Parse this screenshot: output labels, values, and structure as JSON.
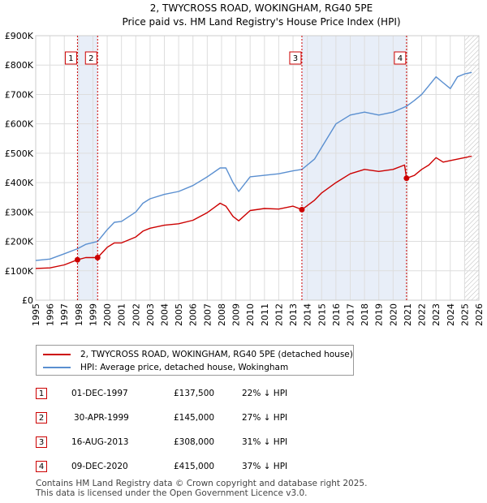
{
  "chart_data": {
    "type": "line",
    "title": "2, TWYCROSS ROAD, WOKINGHAM, RG40 5PE",
    "subtitle": "Price paid vs. HM Land Registry's House Price Index (HPI)",
    "xlabel": "",
    "ylabel": "",
    "xlim": [
      1995,
      2026
    ],
    "ylim": [
      0,
      900000
    ],
    "y_ticks": [
      {
        "value": 0,
        "label": "£0"
      },
      {
        "value": 100000,
        "label": "£100K"
      },
      {
        "value": 200000,
        "label": "£200K"
      },
      {
        "value": 300000,
        "label": "£300K"
      },
      {
        "value": 400000,
        "label": "£400K"
      },
      {
        "value": 500000,
        "label": "£500K"
      },
      {
        "value": 600000,
        "label": "£600K"
      },
      {
        "value": 700000,
        "label": "£700K"
      },
      {
        "value": 800000,
        "label": "£800K"
      },
      {
        "value": 900000,
        "label": "£900K"
      }
    ],
    "x_ticks": [
      "1995",
      "1996",
      "1997",
      "1998",
      "1999",
      "2000",
      "2001",
      "2002",
      "2003",
      "2004",
      "2005",
      "2006",
      "2007",
      "2008",
      "2009",
      "2010",
      "2011",
      "2012",
      "2013",
      "2014",
      "2015",
      "2016",
      "2017",
      "2018",
      "2019",
      "2020",
      "2021",
      "2022",
      "2023",
      "2024",
      "2025",
      "2026"
    ],
    "grid": true,
    "shaded_spans": [
      [
        1997.92,
        1999.33
      ],
      [
        2013.62,
        2020.94
      ]
    ],
    "hatched_from": 2025.0,
    "series": [
      {
        "name": "2, TWYCROSS ROAD, WOKINGHAM, RG40 5PE (detached house)",
        "color": "#cc0000",
        "points": [
          [
            1995.0,
            108000
          ],
          [
            1996.0,
            110000
          ],
          [
            1997.0,
            120000
          ],
          [
            1997.92,
            137500
          ],
          [
            1998.5,
            145000
          ],
          [
            1999.33,
            145000
          ],
          [
            2000.0,
            180000
          ],
          [
            2000.5,
            195000
          ],
          [
            2001.0,
            195000
          ],
          [
            2002.0,
            215000
          ],
          [
            2002.5,
            235000
          ],
          [
            2003.0,
            245000
          ],
          [
            2004.0,
            255000
          ],
          [
            2005.0,
            260000
          ],
          [
            2006.0,
            272000
          ],
          [
            2007.0,
            298000
          ],
          [
            2007.9,
            330000
          ],
          [
            2008.3,
            320000
          ],
          [
            2008.8,
            285000
          ],
          [
            2009.2,
            270000
          ],
          [
            2010.0,
            305000
          ],
          [
            2011.0,
            312000
          ],
          [
            2012.0,
            310000
          ],
          [
            2013.0,
            320000
          ],
          [
            2013.62,
            308000
          ],
          [
            2014.5,
            340000
          ],
          [
            2015.0,
            365000
          ],
          [
            2016.0,
            400000
          ],
          [
            2017.0,
            430000
          ],
          [
            2018.0,
            445000
          ],
          [
            2019.0,
            438000
          ],
          [
            2020.0,
            445000
          ],
          [
            2020.8,
            460000
          ],
          [
            2020.94,
            415000
          ],
          [
            2021.5,
            425000
          ],
          [
            2022.0,
            445000
          ],
          [
            2022.5,
            460000
          ],
          [
            2023.0,
            485000
          ],
          [
            2023.5,
            470000
          ],
          [
            2024.0,
            475000
          ],
          [
            2025.0,
            485000
          ],
          [
            2025.5,
            490000
          ]
        ]
      },
      {
        "name": "HPI: Average price, detached house, Wokingham",
        "color": "#5a8fd0",
        "points": [
          [
            1995.0,
            135000
          ],
          [
            1996.0,
            140000
          ],
          [
            1997.0,
            158000
          ],
          [
            1997.92,
            175000
          ],
          [
            1998.5,
            190000
          ],
          [
            1999.33,
            200000
          ],
          [
            2000.0,
            240000
          ],
          [
            2000.5,
            265000
          ],
          [
            2001.0,
            268000
          ],
          [
            2002.0,
            300000
          ],
          [
            2002.5,
            330000
          ],
          [
            2003.0,
            345000
          ],
          [
            2004.0,
            360000
          ],
          [
            2005.0,
            370000
          ],
          [
            2006.0,
            390000
          ],
          [
            2007.0,
            420000
          ],
          [
            2007.9,
            450000
          ],
          [
            2008.3,
            450000
          ],
          [
            2008.8,
            400000
          ],
          [
            2009.2,
            370000
          ],
          [
            2010.0,
            420000
          ],
          [
            2011.0,
            425000
          ],
          [
            2012.0,
            430000
          ],
          [
            2013.0,
            440000
          ],
          [
            2013.62,
            445000
          ],
          [
            2014.5,
            480000
          ],
          [
            2015.0,
            520000
          ],
          [
            2016.0,
            600000
          ],
          [
            2017.0,
            630000
          ],
          [
            2018.0,
            640000
          ],
          [
            2019.0,
            630000
          ],
          [
            2020.0,
            640000
          ],
          [
            2020.94,
            660000
          ],
          [
            2021.5,
            680000
          ],
          [
            2022.0,
            700000
          ],
          [
            2022.5,
            730000
          ],
          [
            2023.0,
            760000
          ],
          [
            2023.5,
            740000
          ],
          [
            2024.0,
            720000
          ],
          [
            2024.5,
            760000
          ],
          [
            2025.0,
            770000
          ],
          [
            2025.5,
            775000
          ]
        ]
      }
    ],
    "sale_markers": [
      {
        "label": "1",
        "x": 1997.92,
        "y": 137500
      },
      {
        "label": "2",
        "x": 1999.33,
        "y": 145000
      },
      {
        "label": "3",
        "x": 2013.62,
        "y": 308000
      },
      {
        "label": "4",
        "x": 2020.94,
        "y": 415000
      }
    ]
  },
  "legend": {
    "property_label": "2, TWYCROSS ROAD, WOKINGHAM, RG40 5PE (detached house)",
    "hpi_label": "HPI: Average price, detached house, Wokingham",
    "property_color": "#cc0000",
    "hpi_color": "#5a8fd0"
  },
  "sales": [
    {
      "num": "1",
      "date": "01-DEC-1997",
      "price": "£137,500",
      "hpi": "22% ↓ HPI"
    },
    {
      "num": "2",
      "date": "30-APR-1999",
      "price": "£145,000",
      "hpi": "27% ↓ HPI"
    },
    {
      "num": "3",
      "date": "16-AUG-2013",
      "price": "£308,000",
      "hpi": "31% ↓ HPI"
    },
    {
      "num": "4",
      "date": "09-DEC-2020",
      "price": "£415,000",
      "hpi": "37% ↓ HPI"
    }
  ],
  "footer": {
    "line1": "Contains HM Land Registry data © Crown copyright and database right 2025.",
    "line2": "This data is licensed under the Open Government Licence v3.0."
  }
}
